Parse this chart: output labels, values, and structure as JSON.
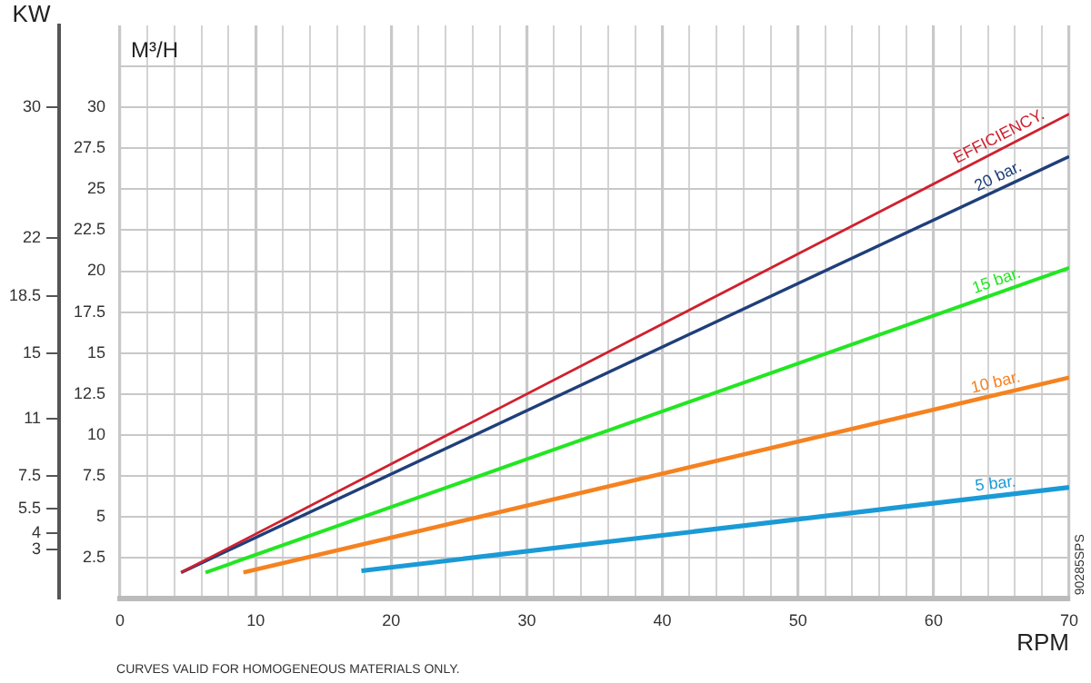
{
  "chart_data": {
    "type": "line",
    "xlabel": "RPM",
    "ylabel": "M³/H",
    "y2label": "KW",
    "annotations": [
      "CURVES VALID FOR HOMOGENEOUS MATERIALS ONLY.",
      "90285SPS"
    ],
    "xlim": [
      0,
      70
    ],
    "xticks": [
      0,
      {
        "value": 2,
        "label": null
      },
      {
        "value": 4,
        "label": null
      },
      {
        "value": 6,
        "label": null
      },
      {
        "value": 8,
        "label": null
      },
      10,
      {
        "value": 12,
        "label": null
      },
      {
        "value": 14,
        "label": null
      },
      {
        "value": 16,
        "label": null
      },
      {
        "value": 18,
        "label": null
      },
      20,
      {
        "value": 22,
        "label": null
      },
      {
        "value": 24,
        "label": null
      },
      {
        "value": 26,
        "label": null
      },
      {
        "value": 28,
        "label": null
      },
      30,
      {
        "value": 32,
        "label": null
      },
      {
        "value": 34,
        "label": null
      },
      {
        "value": 36,
        "label": null
      },
      {
        "value": 38,
        "label": null
      },
      40,
      {
        "value": 42,
        "label": null
      },
      {
        "value": 44,
        "label": null
      },
      {
        "value": 46,
        "label": null
      },
      {
        "value": 48,
        "label": null
      },
      50,
      {
        "value": 52,
        "label": null
      },
      {
        "value": 54,
        "label": null
      },
      {
        "value": 56,
        "label": null
      },
      {
        "value": 58,
        "label": null
      },
      60,
      {
        "value": 62,
        "label": null
      },
      {
        "value": 64,
        "label": null
      },
      {
        "value": 66,
        "label": null
      },
      {
        "value": 68,
        "label": null
      },
      70
    ],
    "ylim": [
      0,
      35
    ],
    "yticks": [
      2.5,
      5,
      7.5,
      10,
      12.5,
      15,
      17.5,
      20,
      22.5,
      25,
      27.5,
      30,
      {
        "value": 32.5,
        "label": null
      }
    ],
    "y2lim": [
      0,
      35
    ],
    "y2ticks": [
      3,
      4,
      5.5,
      7.5,
      11,
      15,
      18.5,
      22,
      30
    ],
    "grid": true,
    "legend": false,
    "marker": "none",
    "line_style": "solid",
    "series": [
      {
        "name": "EFFICIENCY.",
        "color": "#d0202e",
        "x": [
          4.5,
          70
        ],
        "values": [
          1.6,
          29.6
        ]
      },
      {
        "name": "20 bar.",
        "color": "#1f3f7a",
        "x": [
          4.5,
          70
        ],
        "values": [
          1.6,
          27
        ]
      },
      {
        "name": "15 bar.",
        "color": "#22e622",
        "x": [
          6.3,
          70
        ],
        "values": [
          1.6,
          20.2
        ]
      },
      {
        "name": "10 bar.",
        "color": "#f58220",
        "x": [
          9.1,
          70
        ],
        "values": [
          1.6,
          13.5
        ]
      },
      {
        "name": "5 bar.",
        "color": "#1a9ad6",
        "x": [
          17.8,
          70
        ],
        "values": [
          1.7,
          6.8
        ]
      }
    ]
  }
}
